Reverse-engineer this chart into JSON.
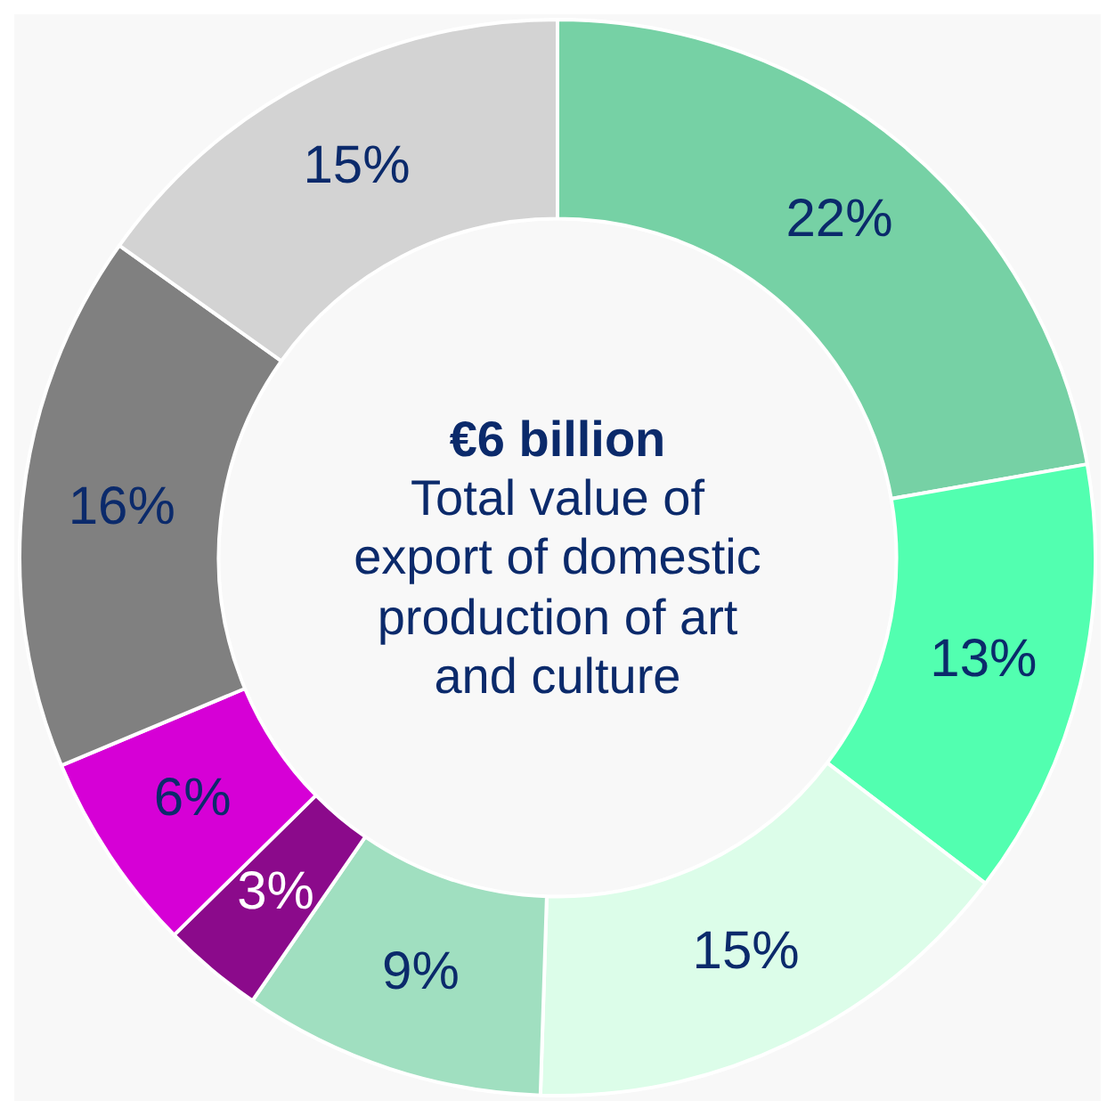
{
  "chart_data": {
    "type": "donut",
    "title": "€6 billion",
    "subtitle": "Total value of export of domestic production of art and culture",
    "categories": [
      null,
      null,
      null,
      null,
      null,
      null,
      null,
      null
    ],
    "values": [
      22,
      13,
      15,
      9,
      3,
      6,
      16,
      15
    ],
    "value_labels": [
      "22%",
      "13%",
      "15%",
      "9%",
      "3%",
      "6%",
      "16%",
      "15%"
    ],
    "colors": [
      "#76d1a5",
      "#52ffb0",
      "#dcfde9",
      "#a0dfc0",
      "#8b0a8b",
      "#d600d6",
      "#808080",
      "#d3d3d3"
    ],
    "legend": false
  }
}
